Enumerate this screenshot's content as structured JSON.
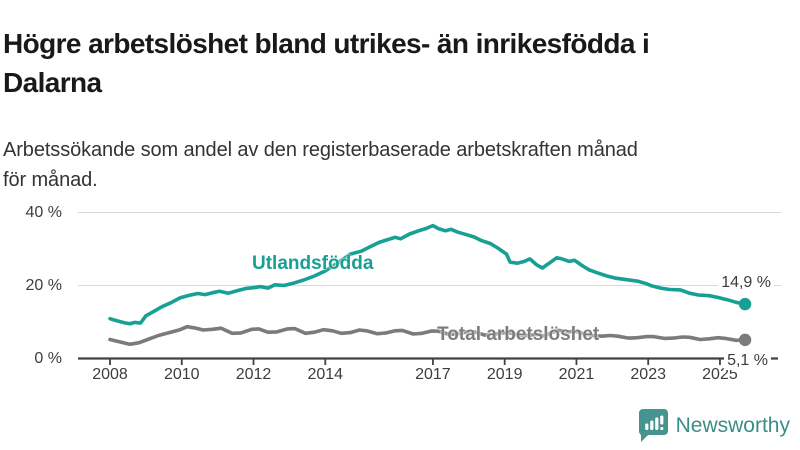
{
  "header": {
    "title_lines": [
      "Högre arbetslöshet bland utrikes- än inrikesfödda i",
      "Dalarna"
    ],
    "subtitle_lines": [
      "Arbetssökande som andel av den registerbaserade arbetskraften månad",
      "för månad."
    ]
  },
  "chart_data": {
    "type": "line",
    "title": "Högre arbetslöshet bland utrikes- än inrikesfödda i Dalarna",
    "subtitle": "Arbetssökande som andel av den registerbaserade arbetskraften månad för månad.",
    "xlabel": "",
    "ylabel": "",
    "xlim": [
      2008,
      2025.9
    ],
    "ylim": [
      0,
      40
    ],
    "grid": "horizontal",
    "x_ticks": [
      {
        "year": 2008,
        "label": "2008"
      },
      {
        "year": 2010,
        "label": "2010"
      },
      {
        "year": 2012,
        "label": "2012"
      },
      {
        "year": 2014,
        "label": "2014"
      },
      {
        "year": 2017,
        "label": "2017"
      },
      {
        "year": 2019,
        "label": "2019"
      },
      {
        "year": 2021,
        "label": "2021"
      },
      {
        "year": 2023,
        "label": "2023"
      },
      {
        "year": 2025,
        "label": "2025"
      }
    ],
    "y_ticks": [
      {
        "value": 0,
        "label": "0 %"
      },
      {
        "value": 20,
        "label": "20 %"
      },
      {
        "value": 40,
        "label": "40 %"
      }
    ],
    "series": [
      {
        "name": "Utlandsfödda",
        "color": "#17a093",
        "end_label": "14,9 %",
        "end_value": 14.9,
        "points": [
          [
            2008.0,
            10.9
          ],
          [
            2008.2,
            10.3
          ],
          [
            2008.4,
            9.8
          ],
          [
            2008.55,
            9.5
          ],
          [
            2008.7,
            9.9
          ],
          [
            2008.85,
            9.7
          ],
          [
            2009.0,
            11.7
          ],
          [
            2009.2,
            12.8
          ],
          [
            2009.45,
            14.2
          ],
          [
            2009.7,
            15.3
          ],
          [
            2009.95,
            16.6
          ],
          [
            2010.2,
            17.3
          ],
          [
            2010.45,
            17.8
          ],
          [
            2010.65,
            17.5
          ],
          [
            2010.9,
            18.1
          ],
          [
            2011.05,
            18.4
          ],
          [
            2011.3,
            17.9
          ],
          [
            2011.55,
            18.6
          ],
          [
            2011.8,
            19.2
          ],
          [
            2012.0,
            19.4
          ],
          [
            2012.2,
            19.7
          ],
          [
            2012.4,
            19.3
          ],
          [
            2012.6,
            20.2
          ],
          [
            2012.85,
            20.0
          ],
          [
            2013.1,
            20.6
          ],
          [
            2013.4,
            21.5
          ],
          [
            2013.7,
            22.6
          ],
          [
            2014.0,
            24.0
          ],
          [
            2014.35,
            26.2
          ],
          [
            2014.7,
            28.6
          ],
          [
            2015.0,
            29.4
          ],
          [
            2015.25,
            30.6
          ],
          [
            2015.5,
            31.8
          ],
          [
            2015.75,
            32.6
          ],
          [
            2015.95,
            33.2
          ],
          [
            2016.1,
            32.8
          ],
          [
            2016.35,
            34.1
          ],
          [
            2016.6,
            35.0
          ],
          [
            2016.8,
            35.6
          ],
          [
            2017.0,
            36.4
          ],
          [
            2017.15,
            35.6
          ],
          [
            2017.35,
            35.0
          ],
          [
            2017.5,
            35.4
          ],
          [
            2017.7,
            34.6
          ],
          [
            2017.95,
            33.9
          ],
          [
            2018.15,
            33.3
          ],
          [
            2018.35,
            32.3
          ],
          [
            2018.6,
            31.5
          ],
          [
            2018.8,
            30.3
          ],
          [
            2018.95,
            29.3
          ],
          [
            2019.05,
            28.6
          ],
          [
            2019.15,
            26.4
          ],
          [
            2019.35,
            26.1
          ],
          [
            2019.55,
            26.6
          ],
          [
            2019.7,
            27.3
          ],
          [
            2019.9,
            25.6
          ],
          [
            2020.05,
            24.8
          ],
          [
            2020.25,
            26.2
          ],
          [
            2020.45,
            27.6
          ],
          [
            2020.6,
            27.3
          ],
          [
            2020.8,
            26.6
          ],
          [
            2020.95,
            26.9
          ],
          [
            2021.15,
            25.5
          ],
          [
            2021.35,
            24.3
          ],
          [
            2021.6,
            23.4
          ],
          [
            2021.85,
            22.6
          ],
          [
            2022.1,
            22.0
          ],
          [
            2022.4,
            21.6
          ],
          [
            2022.7,
            21.2
          ],
          [
            2022.95,
            20.5
          ],
          [
            2023.1,
            19.9
          ],
          [
            2023.35,
            19.3
          ],
          [
            2023.6,
            18.9
          ],
          [
            2023.9,
            18.8
          ],
          [
            2024.15,
            17.9
          ],
          [
            2024.4,
            17.4
          ],
          [
            2024.7,
            17.2
          ],
          [
            2024.95,
            16.7
          ],
          [
            2025.2,
            16.1
          ],
          [
            2025.45,
            15.4
          ],
          [
            2025.7,
            14.9
          ]
        ]
      },
      {
        "name": "Total arbetslöshet",
        "color": "#7b7b7b",
        "end_label": "5,1 %",
        "end_value": 5.1,
        "points": [
          [
            2008.0,
            5.2
          ],
          [
            2008.3,
            4.5
          ],
          [
            2008.55,
            3.9
          ],
          [
            2008.8,
            4.3
          ],
          [
            2009.05,
            5.2
          ],
          [
            2009.35,
            6.3
          ],
          [
            2009.65,
            7.1
          ],
          [
            2009.95,
            7.9
          ],
          [
            2010.15,
            8.7
          ],
          [
            2010.4,
            8.3
          ],
          [
            2010.6,
            7.8
          ],
          [
            2010.85,
            8.0
          ],
          [
            2011.1,
            8.3
          ],
          [
            2011.4,
            6.9
          ],
          [
            2011.65,
            7.0
          ],
          [
            2011.95,
            8.0
          ],
          [
            2012.15,
            8.1
          ],
          [
            2012.4,
            7.2
          ],
          [
            2012.65,
            7.3
          ],
          [
            2012.95,
            8.1
          ],
          [
            2013.15,
            8.2
          ],
          [
            2013.45,
            6.9
          ],
          [
            2013.7,
            7.2
          ],
          [
            2013.95,
            7.9
          ],
          [
            2014.2,
            7.6
          ],
          [
            2014.45,
            6.9
          ],
          [
            2014.7,
            7.1
          ],
          [
            2014.95,
            7.8
          ],
          [
            2015.15,
            7.6
          ],
          [
            2015.45,
            6.8
          ],
          [
            2015.7,
            7.0
          ],
          [
            2015.95,
            7.6
          ],
          [
            2016.15,
            7.7
          ],
          [
            2016.45,
            6.7
          ],
          [
            2016.7,
            6.9
          ],
          [
            2016.95,
            7.5
          ],
          [
            2017.15,
            7.5
          ],
          [
            2017.45,
            6.6
          ],
          [
            2017.7,
            6.8
          ],
          [
            2017.95,
            7.3
          ],
          [
            2018.15,
            7.3
          ],
          [
            2018.45,
            6.4
          ],
          [
            2018.7,
            6.6
          ],
          [
            2018.95,
            7.1
          ],
          [
            2019.15,
            7.0
          ],
          [
            2019.45,
            6.2
          ],
          [
            2019.7,
            6.4
          ],
          [
            2019.95,
            6.6
          ],
          [
            2020.1,
            6.1
          ],
          [
            2020.3,
            7.1
          ],
          [
            2020.5,
            7.7
          ],
          [
            2020.75,
            7.3
          ],
          [
            2020.95,
            7.5
          ],
          [
            2021.2,
            6.8
          ],
          [
            2021.45,
            6.3
          ],
          [
            2021.7,
            6.1
          ],
          [
            2021.95,
            6.3
          ],
          [
            2022.15,
            6.1
          ],
          [
            2022.45,
            5.6
          ],
          [
            2022.7,
            5.7
          ],
          [
            2022.95,
            6.0
          ],
          [
            2023.15,
            6.0
          ],
          [
            2023.45,
            5.5
          ],
          [
            2023.7,
            5.6
          ],
          [
            2023.95,
            5.9
          ],
          [
            2024.15,
            5.8
          ],
          [
            2024.45,
            5.2
          ],
          [
            2024.7,
            5.4
          ],
          [
            2024.95,
            5.7
          ],
          [
            2025.15,
            5.5
          ],
          [
            2025.45,
            5.0
          ],
          [
            2025.7,
            5.1
          ]
        ]
      }
    ],
    "colors": {
      "utlandsfodda": "#17a093",
      "total": "#7b7b7b",
      "gridline": "#d8d8d8",
      "axis": "#424242",
      "text": "#3d3d3d"
    }
  },
  "footer": {
    "brand": "Newsworthy"
  }
}
